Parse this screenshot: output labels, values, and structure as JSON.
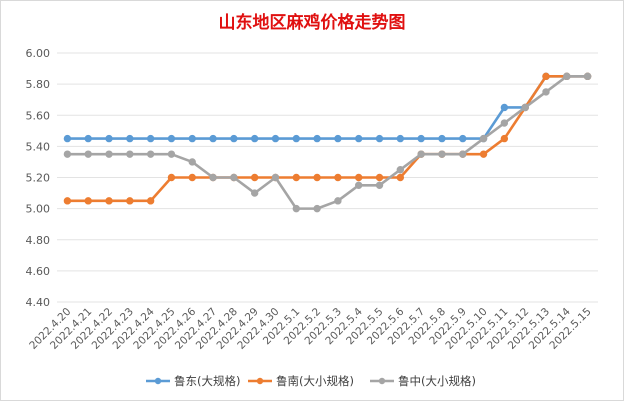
{
  "chart_data": {
    "type": "line",
    "title": "山东地区麻鸡价格走势图",
    "xlabel": "",
    "ylabel": "",
    "ylim": [
      4.4,
      6.0
    ],
    "yticks": [
      "6.00",
      "5.80",
      "5.60",
      "5.40",
      "5.20",
      "5.00",
      "4.80",
      "4.60",
      "4.40"
    ],
    "grid": true,
    "legend_position": "bottom",
    "categories": [
      "2022.4.20",
      "2022.4.21",
      "2022.4.22",
      "2022.4.23",
      "2022.4.24",
      "2022.4.25",
      "2022.4.26",
      "2022.4.27",
      "2022.4.28",
      "2022.4.29",
      "2022.4.30",
      "2022.5.1",
      "2022.5.2",
      "2022.5.3",
      "2022.5.4",
      "2022.5.5",
      "2022.5.6",
      "2022.5.7",
      "2022.5.8",
      "2022.5.9",
      "2022.5.10",
      "2022.5.11",
      "2022.5.12",
      "2022.5.13",
      "2022.5.14",
      "2022.5.15"
    ],
    "series": [
      {
        "name": "鲁东(大规格)",
        "color": "#5b9bd5",
        "values": [
          5.45,
          5.45,
          5.45,
          5.45,
          5.45,
          5.45,
          5.45,
          5.45,
          5.45,
          5.45,
          5.45,
          5.45,
          5.45,
          5.45,
          5.45,
          5.45,
          5.45,
          5.45,
          5.45,
          5.45,
          5.45,
          5.65,
          5.65,
          5.85,
          5.85,
          5.85
        ]
      },
      {
        "name": "鲁南(大小规格)",
        "color": "#ed7d31",
        "values": [
          5.05,
          5.05,
          5.05,
          5.05,
          5.05,
          5.2,
          5.2,
          5.2,
          5.2,
          5.2,
          5.2,
          5.2,
          5.2,
          5.2,
          5.2,
          5.2,
          5.2,
          5.35,
          5.35,
          5.35,
          5.35,
          5.45,
          5.65,
          5.85,
          5.85,
          5.85
        ]
      },
      {
        "name": "鲁中(大小规格)",
        "color": "#a5a5a5",
        "values": [
          5.35,
          5.35,
          5.35,
          5.35,
          5.35,
          5.35,
          5.3,
          5.2,
          5.2,
          5.1,
          5.2,
          5.0,
          5.0,
          5.05,
          5.15,
          5.15,
          5.25,
          5.35,
          5.35,
          5.35,
          5.45,
          5.55,
          5.65,
          5.75,
          5.85,
          5.85
        ]
      }
    ]
  }
}
